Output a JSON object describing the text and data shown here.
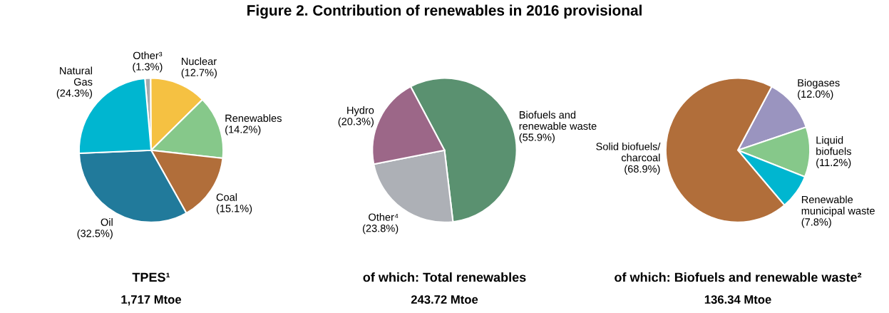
{
  "chart_data": [
    {
      "type": "pie",
      "xlabel": "TPES¹",
      "annotations": [
        "1,717 Mtoe"
      ],
      "categories": [
        "Other³",
        "Nuclear",
        "Renewables",
        "Coal",
        "Oil",
        "Natural\nGas"
      ],
      "values": [
        1.3,
        12.7,
        14.2,
        15.1,
        32.5,
        24.3
      ],
      "value_labels": [
        "(1.3%)",
        "(12.7%)",
        "(14.2%)",
        "(15.1%)",
        "(32.5%)",
        "(24.3%)"
      ],
      "colors": [
        "#a7a9ac",
        "#f5c142",
        "#86c88a",
        "#b16e3a",
        "#217a9b",
        "#00b6d0"
      ]
    },
    {
      "type": "pie",
      "title": "Figure 2. Contribution of renewables in 2016 provisional",
      "xlabel": "of which: Total renewables",
      "annotations": [
        "243.72 Mtoe"
      ],
      "categories": [
        "Biofuels and\nrenewable waste",
        "Other⁴",
        "Hydro"
      ],
      "values": [
        55.9,
        23.8,
        20.3
      ],
      "value_labels": [
        "(55.9%)",
        "(23.8%)",
        "(20.3%)"
      ],
      "colors": [
        "#5a9170",
        "#adb0b6",
        "#9c6788"
      ]
    },
    {
      "type": "pie",
      "xlabel": "of which: Biofuels and renewable waste²",
      "annotations": [
        "136.34 Mtoe"
      ],
      "categories": [
        "Biogases",
        "Liquid\nbiofuels",
        "Renewable\nmunicipal waste",
        "Solid biofuels/\ncharcoal"
      ],
      "values": [
        12.0,
        11.2,
        7.8,
        68.9
      ],
      "value_labels": [
        "(12.0%)",
        "(11.2%)",
        "(7.8%)",
        "(68.9%)"
      ],
      "colors": [
        "#9a94bf",
        "#86c88a",
        "#00b6d0",
        "#b16e3a"
      ]
    }
  ]
}
